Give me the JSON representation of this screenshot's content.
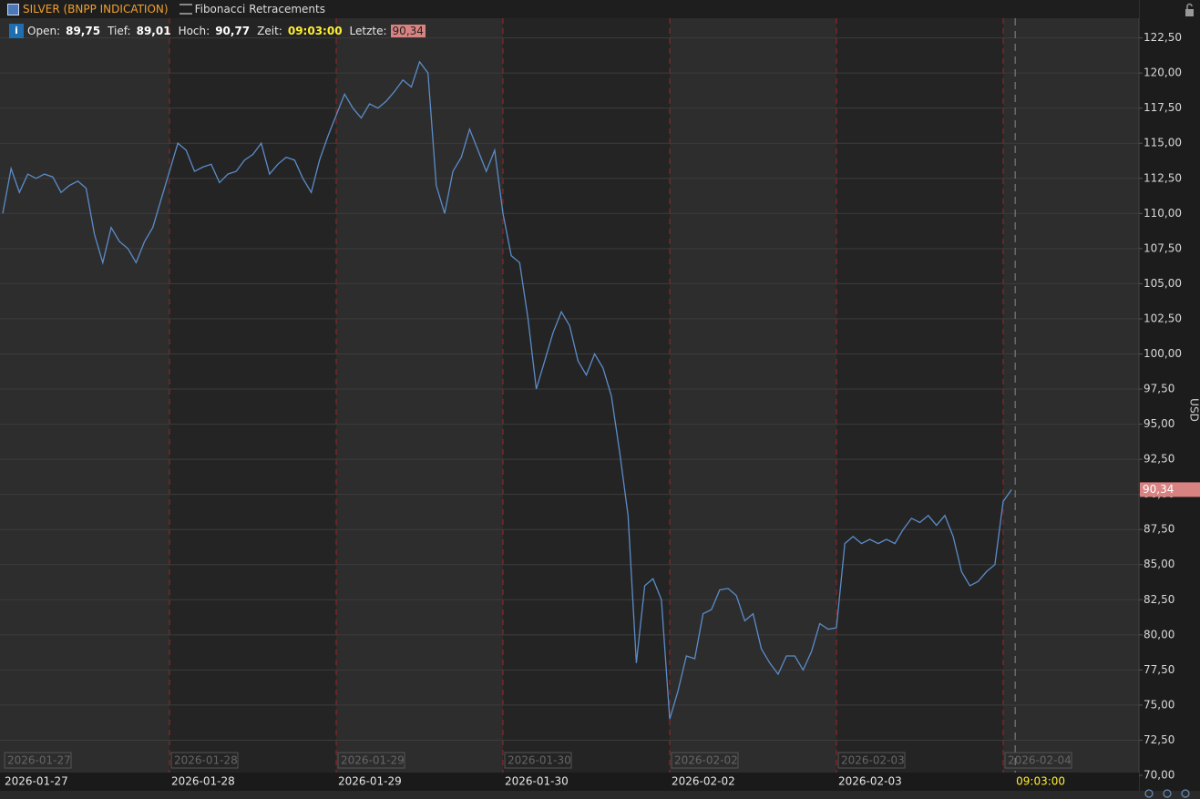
{
  "chart_data": {
    "type": "line",
    "title": "SILVER (BNPP INDICATION)",
    "indicator": "Fibonacci Retracements",
    "info_fields": [
      {
        "label": "Open:",
        "value": "89,75"
      },
      {
        "label": "Tief:",
        "value": "89,01"
      },
      {
        "label": "Hoch:",
        "value": "90,77"
      },
      {
        "label": "Zeit:",
        "value": "09:03:00"
      },
      {
        "label": "Letzte:",
        "value": "90,34"
      }
    ],
    "y_axis_label": "USD",
    "session_labels": [
      "2026-01-27",
      "2026-01-28",
      "2026-01-29",
      "2026-01-30",
      "2026-02-02",
      "2026-02-03",
      "2026-02-04"
    ],
    "crosshair_time": "09:03:00",
    "last_marker": {
      "value": 90.34,
      "label": "90,34"
    },
    "categories": [
      "2026-01-27",
      null,
      null,
      null,
      null,
      null,
      null,
      null,
      null,
      null,
      null,
      null,
      null,
      null,
      null,
      null,
      null,
      null,
      null,
      null,
      "2026-01-28",
      null,
      null,
      null,
      null,
      null,
      null,
      null,
      null,
      null,
      null,
      null,
      null,
      null,
      null,
      null,
      null,
      null,
      null,
      null,
      "2026-01-29",
      null,
      null,
      null,
      null,
      null,
      null,
      null,
      null,
      null,
      null,
      null,
      null,
      null,
      null,
      null,
      null,
      null,
      null,
      null,
      "2026-01-30",
      null,
      null,
      null,
      null,
      null,
      null,
      null,
      null,
      null,
      null,
      null,
      null,
      null,
      null,
      null,
      null,
      null,
      null,
      null,
      "2026-02-02",
      null,
      null,
      null,
      null,
      null,
      null,
      null,
      null,
      null,
      null,
      null,
      null,
      null,
      null,
      null,
      null,
      null,
      null,
      null,
      "2026-02-03",
      null,
      null,
      null,
      null,
      null,
      null,
      null,
      null,
      null,
      null,
      null,
      null,
      null,
      null,
      null,
      null,
      null,
      null,
      null,
      null,
      null
    ],
    "series": [
      {
        "name": "SILVER (BNPP INDICATION)",
        "color": "#5b8cc8",
        "values": [
          110,
          113.2,
          111.5,
          112.8,
          112.5,
          112.8,
          112.6,
          111.5,
          112,
          112.3,
          111.8,
          108.5,
          106.5,
          109,
          108,
          107.5,
          106.5,
          108,
          109,
          111,
          113,
          115,
          114.5,
          113,
          113.3,
          113.5,
          112.2,
          112.8,
          113,
          113.8,
          114.2,
          115,
          112.8,
          113.5,
          114,
          113.8,
          112.5,
          111.5,
          113.8,
          115.5,
          117,
          118.5,
          117.5,
          116.8,
          117.8,
          117.5,
          118,
          118.7,
          119.5,
          119,
          120.8,
          120,
          112,
          110,
          113,
          114,
          116,
          114.5,
          113,
          114.5,
          110,
          107,
          106.5,
          102.5,
          97.5,
          99.5,
          101.5,
          103,
          102,
          99.5,
          98.5,
          100,
          99,
          97,
          93,
          88.5,
          78,
          83.5,
          84,
          82.5,
          74,
          76,
          78.5,
          78.3,
          81.5,
          81.8,
          83.2,
          83.3,
          82.8,
          81,
          81.5,
          79,
          78,
          77.2,
          78.5,
          78.5,
          77.5,
          78.8,
          80.8,
          80.4,
          80.5,
          86.5,
          87,
          86.5,
          86.8,
          86.5,
          86.8,
          86.5,
          87.5,
          88.3,
          88,
          88.5,
          87.8,
          88.5,
          87,
          84.5,
          83.5,
          83.8,
          84.5,
          85,
          89.5,
          90.34
        ]
      }
    ],
    "ylim": [
      70,
      123.9
    ],
    "yticks": [
      {
        "value": 70,
        "label": "70,00"
      },
      {
        "value": 72.5,
        "label": "72,50"
      },
      {
        "value": 75,
        "label": "75,00"
      },
      {
        "value": 77.5,
        "label": "77,50"
      },
      {
        "value": 80,
        "label": "80,00"
      },
      {
        "value": 82.5,
        "label": "82,50"
      },
      {
        "value": 85,
        "label": "85,00"
      },
      {
        "value": 87.5,
        "label": "87,50"
      },
      {
        "value": 90,
        "label": "90,00"
      },
      {
        "value": 92.5,
        "label": "92,50"
      },
      {
        "value": 95,
        "label": "95,00"
      },
      {
        "value": 97.5,
        "label": "97,50"
      },
      {
        "value": 100,
        "label": "100,00"
      },
      {
        "value": 102.5,
        "label": "102,50"
      },
      {
        "value": 105,
        "label": "105,00"
      },
      {
        "value": 107.5,
        "label": "107,50"
      },
      {
        "value": 110,
        "label": "110,00"
      },
      {
        "value": 112.5,
        "label": "112,50"
      },
      {
        "value": 115,
        "label": "115,00"
      },
      {
        "value": 117.5,
        "label": "117,50"
      },
      {
        "value": 120,
        "label": "120,00"
      },
      {
        "value": 122.5,
        "label": "122,50"
      }
    ],
    "grid": true
  }
}
